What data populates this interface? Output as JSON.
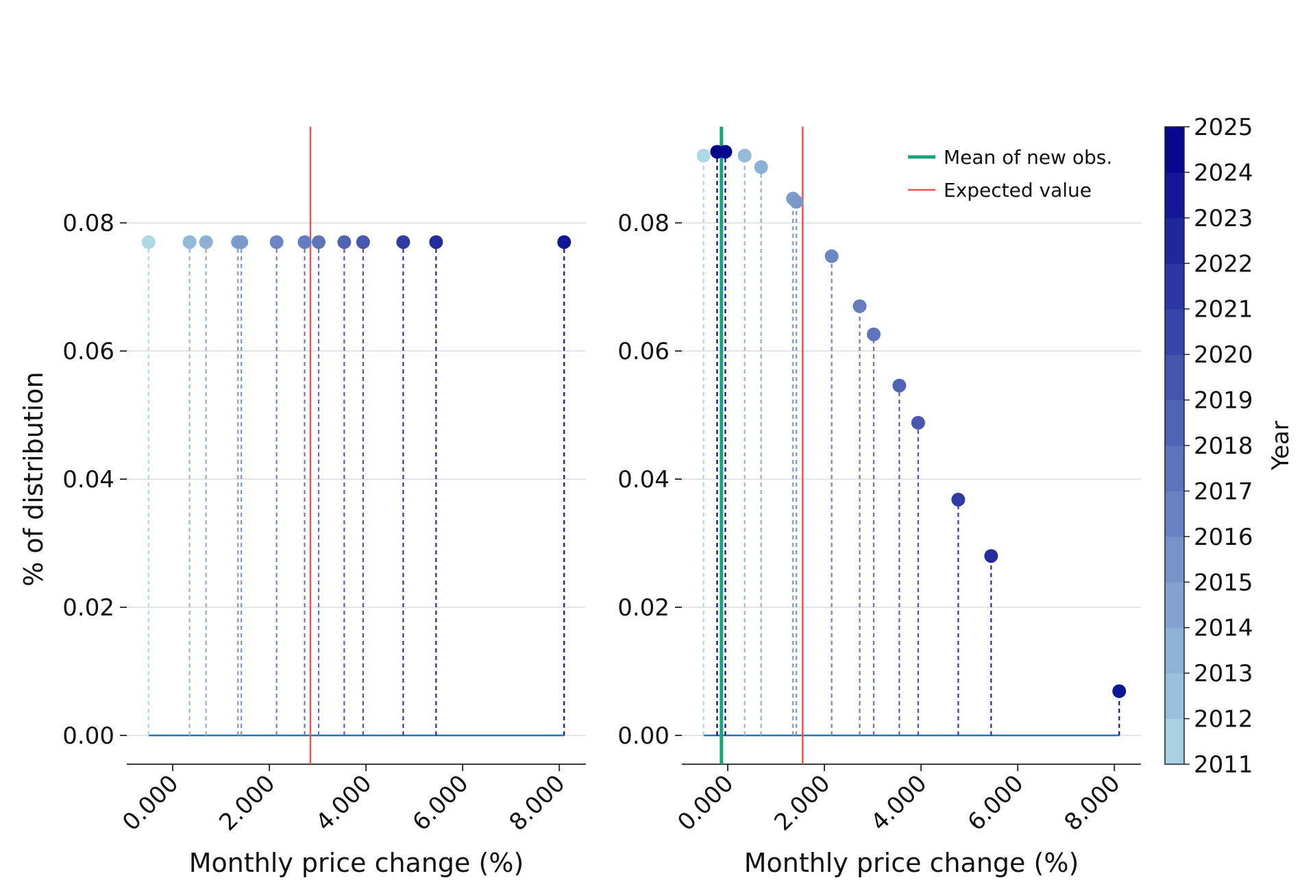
{
  "colorbar": {
    "label": "Year",
    "ticks": [
      "2011",
      "2012",
      "2013",
      "2014",
      "2015",
      "2016",
      "2017",
      "2018",
      "2019",
      "2020",
      "2021",
      "2022",
      "2023",
      "2024",
      "2025"
    ],
    "color_low": "#add8e6",
    "color_high": "#00008b"
  },
  "colors": {
    "stem_base": "#1f77b4",
    "expected": "#f05050",
    "mean_new": "#1aa37a",
    "grid": "#dddddd"
  },
  "chart_data": [
    {
      "type": "scatter",
      "panel": "left",
      "xlabel": "Monthly price change (%)",
      "ylabel": "% of distribution",
      "xlim": [
        -0.95,
        8.55
      ],
      "ylim": [
        -0.0045,
        0.095
      ],
      "xticks": [
        0,
        2,
        4,
        6,
        8
      ],
      "xtick_labels": [
        "0.000",
        "2.000",
        "4.000",
        "6.000",
        "8.000"
      ],
      "yticks": [
        0,
        0.02,
        0.04,
        0.06,
        0.08
      ],
      "ytick_labels": [
        "0.00",
        "0.02",
        "0.04",
        "0.06",
        "0.08"
      ],
      "expected_value": 2.85,
      "points": [
        {
          "x": -0.5,
          "y": 0.077,
          "year": 2011
        },
        {
          "x": 0.35,
          "y": 0.077,
          "year": 2013
        },
        {
          "x": 0.69,
          "y": 0.077,
          "year": 2013.6
        },
        {
          "x": 1.35,
          "y": 0.077,
          "year": 2014.8
        },
        {
          "x": 1.42,
          "y": 0.077,
          "year": 2015.1
        },
        {
          "x": 2.15,
          "y": 0.077,
          "year": 2016.3
        },
        {
          "x": 2.73,
          "y": 0.077,
          "year": 2016.9
        },
        {
          "x": 3.02,
          "y": 0.077,
          "year": 2017.4
        },
        {
          "x": 3.55,
          "y": 0.077,
          "year": 2018.5
        },
        {
          "x": 3.94,
          "y": 0.077,
          "year": 2019.3
        },
        {
          "x": 4.77,
          "y": 0.077,
          "year": 2021.2
        },
        {
          "x": 5.45,
          "y": 0.077,
          "year": 2022.2
        },
        {
          "x": 8.1,
          "y": 0.077,
          "year": 2023.6
        }
      ]
    },
    {
      "type": "scatter",
      "panel": "right",
      "xlabel": "Monthly price change (%)",
      "ylabel": "",
      "xlim": [
        -0.95,
        8.55
      ],
      "ylim": [
        -0.0045,
        0.095
      ],
      "xticks": [
        0,
        2,
        4,
        6,
        8
      ],
      "xtick_labels": [
        "0.000",
        "2.000",
        "4.000",
        "6.000",
        "8.000"
      ],
      "yticks": [
        0,
        0.02,
        0.04,
        0.06,
        0.08
      ],
      "ytick_labels": [
        "0.00",
        "0.02",
        "0.04",
        "0.06",
        "0.08"
      ],
      "expected_value": 1.55,
      "mean_new_obs": -0.13,
      "legend": {
        "position": "top-right",
        "mean_label": "Mean of new obs.",
        "expected_label": "Expected value"
      },
      "points": [
        {
          "x": -0.5,
          "y": 0.0905,
          "year": 2011
        },
        {
          "x": 0.35,
          "y": 0.0905,
          "year": 2013
        },
        {
          "x": 0.69,
          "y": 0.0887,
          "year": 2013.6
        },
        {
          "x": 1.35,
          "y": 0.0838,
          "year": 2014.8
        },
        {
          "x": 1.42,
          "y": 0.0833,
          "year": 2015.1
        },
        {
          "x": 2.15,
          "y": 0.0748,
          "year": 2016.3
        },
        {
          "x": 2.73,
          "y": 0.067,
          "year": 2016.9
        },
        {
          "x": 3.02,
          "y": 0.0626,
          "year": 2017.4
        },
        {
          "x": 3.55,
          "y": 0.0546,
          "year": 2018.5
        },
        {
          "x": 3.94,
          "y": 0.0488,
          "year": 2019.3
        },
        {
          "x": 4.77,
          "y": 0.0368,
          "year": 2021.2
        },
        {
          "x": 5.45,
          "y": 0.028,
          "year": 2022.2
        },
        {
          "x": 8.1,
          "y": 0.0069,
          "year": 2023.6
        },
        {
          "x": -0.22,
          "y": 0.0911,
          "year": 2025
        },
        {
          "x": -0.05,
          "y": 0.0911,
          "year": 2024.6
        }
      ]
    }
  ]
}
